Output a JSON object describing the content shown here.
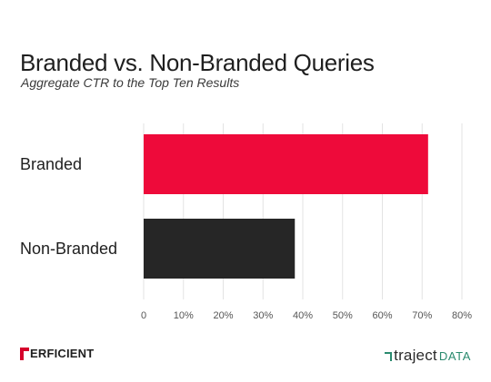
{
  "chart_data": {
    "type": "bar",
    "orientation": "horizontal",
    "title": "Branded vs. Non-Branded Queries",
    "subtitle": "Aggregate CTR to the Top Ten Results",
    "categories": [
      "Branded",
      "Non-Branded"
    ],
    "values": [
      71.5,
      38
    ],
    "colors": [
      "#ee0a3a",
      "#262626"
    ],
    "xlim": [
      0,
      80
    ],
    "xticks": [
      0,
      10,
      20,
      30,
      40,
      50,
      60,
      70,
      80
    ],
    "xtick_labels": [
      "0",
      "10%",
      "20%",
      "30%",
      "40%",
      "50%",
      "60%",
      "70%",
      "80%"
    ],
    "grid": true,
    "xlabel": "",
    "ylabel": ""
  },
  "footer": {
    "left_logo_text": "ERFICIENT",
    "right_logo_text": "traject",
    "right_logo_suffix": "DATA"
  }
}
